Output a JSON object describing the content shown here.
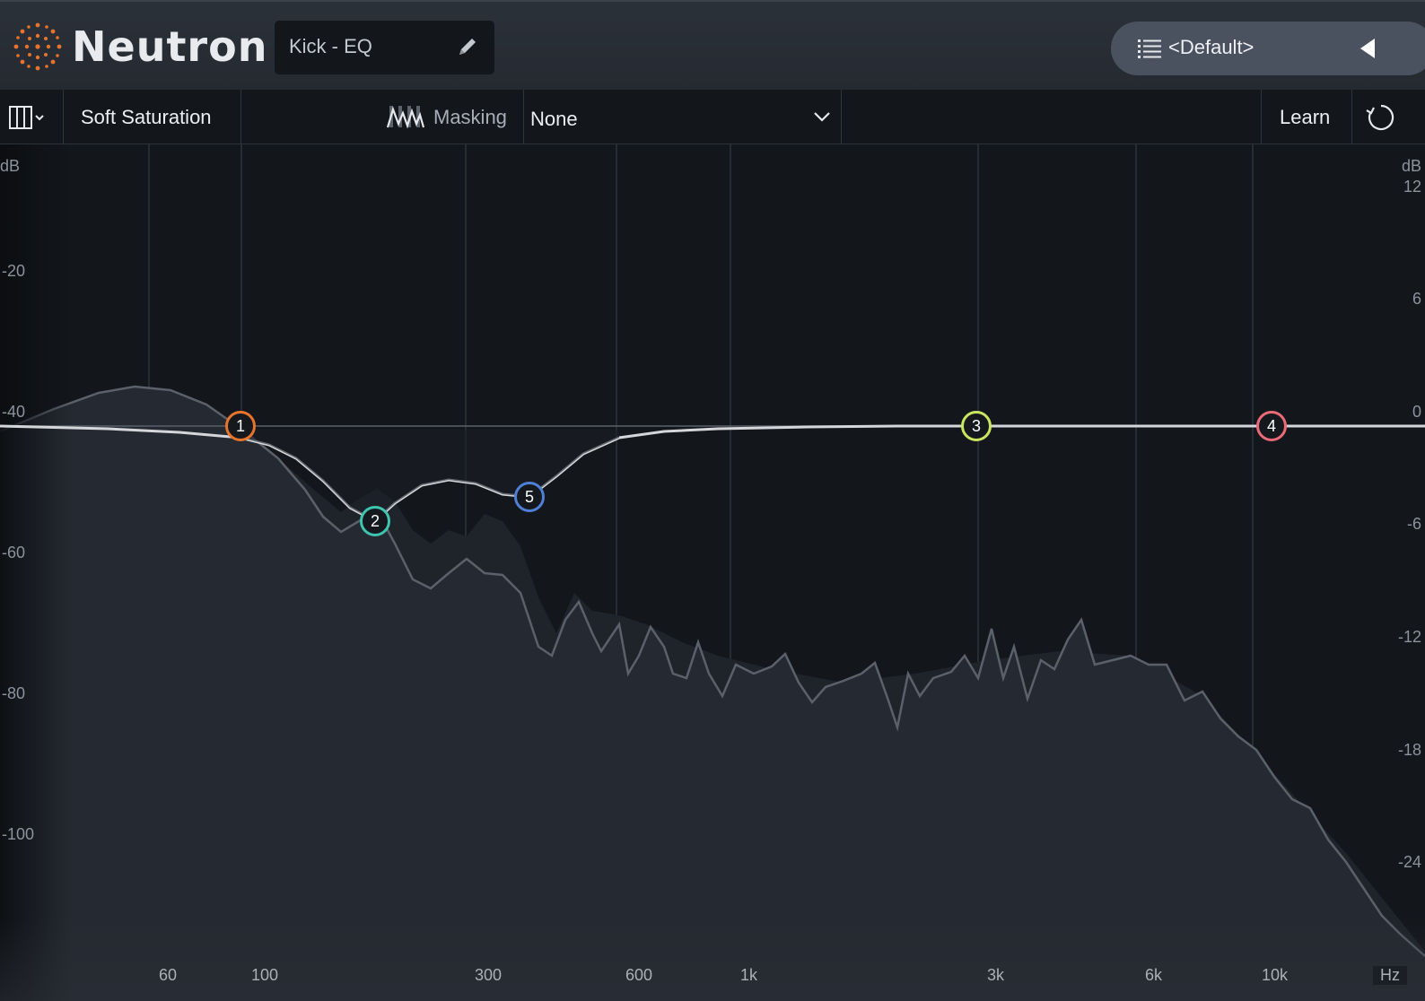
{
  "header": {
    "app_title": "Neutron",
    "preset_name": "Kick - EQ",
    "preset_menu_label": "<Default>",
    "accent_color": "#e8742c"
  },
  "toolbar": {
    "view_icon": "columns-icon",
    "soft_saturation_label": "Soft Saturation",
    "masking_label": "Masking",
    "masking_value": "None",
    "learn_label": "Learn",
    "reset_icon": "refresh-icon"
  },
  "eq": {
    "left_axis_unit": "dB",
    "right_axis_unit": "dB",
    "left_axis_ticks": [
      "-20",
      "-40",
      "-60",
      "-80",
      "-100"
    ],
    "right_axis_ticks": [
      "12",
      "6",
      "0",
      "-6",
      "-12",
      "-18",
      "-24"
    ],
    "freq_unit": "Hz",
    "freq_ticks": [
      "60",
      "100",
      "300",
      "600",
      "1k",
      "3k",
      "6k",
      "10k"
    ],
    "bands": [
      {
        "label": "1",
        "color": "#e8742c"
      },
      {
        "label": "2",
        "color": "#3fc4b0"
      },
      {
        "label": "3",
        "color": "#c8e660"
      },
      {
        "label": "4",
        "color": "#ea6a78"
      },
      {
        "label": "5",
        "color": "#4f7fd6"
      }
    ]
  }
}
